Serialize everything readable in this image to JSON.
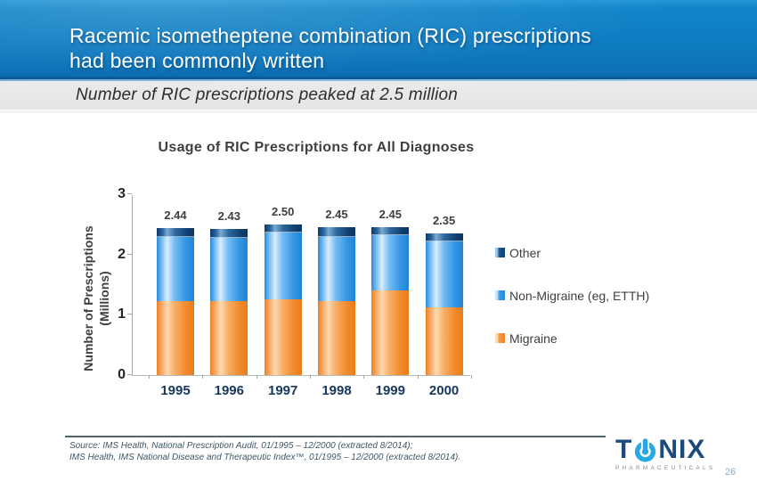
{
  "header": {
    "title_line1": "Racemic isometheptene combination (RIC) prescriptions",
    "title_line2": "had been commonly written"
  },
  "subtitle": "Number of RIC prescriptions peaked at 2.5 million",
  "chart_data": {
    "type": "bar",
    "stacked": true,
    "title": "Usage of RIC Prescriptions for All Diagnoses",
    "ylabel_line1": "Number of Prescriptions",
    "ylabel_line2": "(Millions)",
    "categories": [
      "1995",
      "1996",
      "1997",
      "1998",
      "1999",
      "2000"
    ],
    "series": [
      {
        "name": "Migraine",
        "key": "migraine",
        "color": "#F0871F",
        "values": [
          1.23,
          1.22,
          1.26,
          1.23,
          1.41,
          1.13
        ]
      },
      {
        "name": "Non-Migraine (eg, ETTH)",
        "key": "nonmigraine",
        "color": "#3D9AE8",
        "values": [
          1.06,
          1.05,
          1.11,
          1.06,
          0.91,
          1.09
        ]
      },
      {
        "name": "Other",
        "key": "other",
        "color": "#123F6E",
        "values": [
          0.15,
          0.16,
          0.13,
          0.16,
          0.13,
          0.13
        ]
      }
    ],
    "totals": [
      "2.44",
      "2.43",
      "2.50",
      "2.45",
      "2.45",
      "2.35"
    ],
    "ylim": [
      0,
      3
    ],
    "yticks": [
      0,
      1,
      2,
      3
    ],
    "grid": false,
    "legend_position": "right",
    "legend_items": [
      {
        "label": "Other",
        "key": "other"
      },
      {
        "label": "Non-Migraine (eg, ETTH)",
        "key": "nonmigraine"
      },
      {
        "label": "Migraine",
        "key": "migraine"
      }
    ]
  },
  "footer": {
    "source_line1": "Source: IMS Health, National Prescription Audit, 01/1995 – 12/2000 (extracted 8/2014);",
    "source_line2": "IMS Health, IMS National Disease and Therapeutic Index™, 01/1995 – 12/2000 (extracted 8/2014).",
    "page_number": "26",
    "logo": {
      "letters_t": "T",
      "letters_nix": "NIX",
      "subtext": "PHARMACEUTICALS"
    }
  },
  "colors": {
    "header_blue": "#0F7CC1",
    "header_edge_dark": "#0A5C99",
    "migraine_orange": "#F0871F",
    "non_migraine_blue": "#3D9AE8",
    "other_navy": "#123F6E",
    "axis_label_navy": "#17365D",
    "logo_navy": "#1C4A7A",
    "logo_light_blue": "#29A9E1",
    "source_slate": "#3F5765"
  }
}
